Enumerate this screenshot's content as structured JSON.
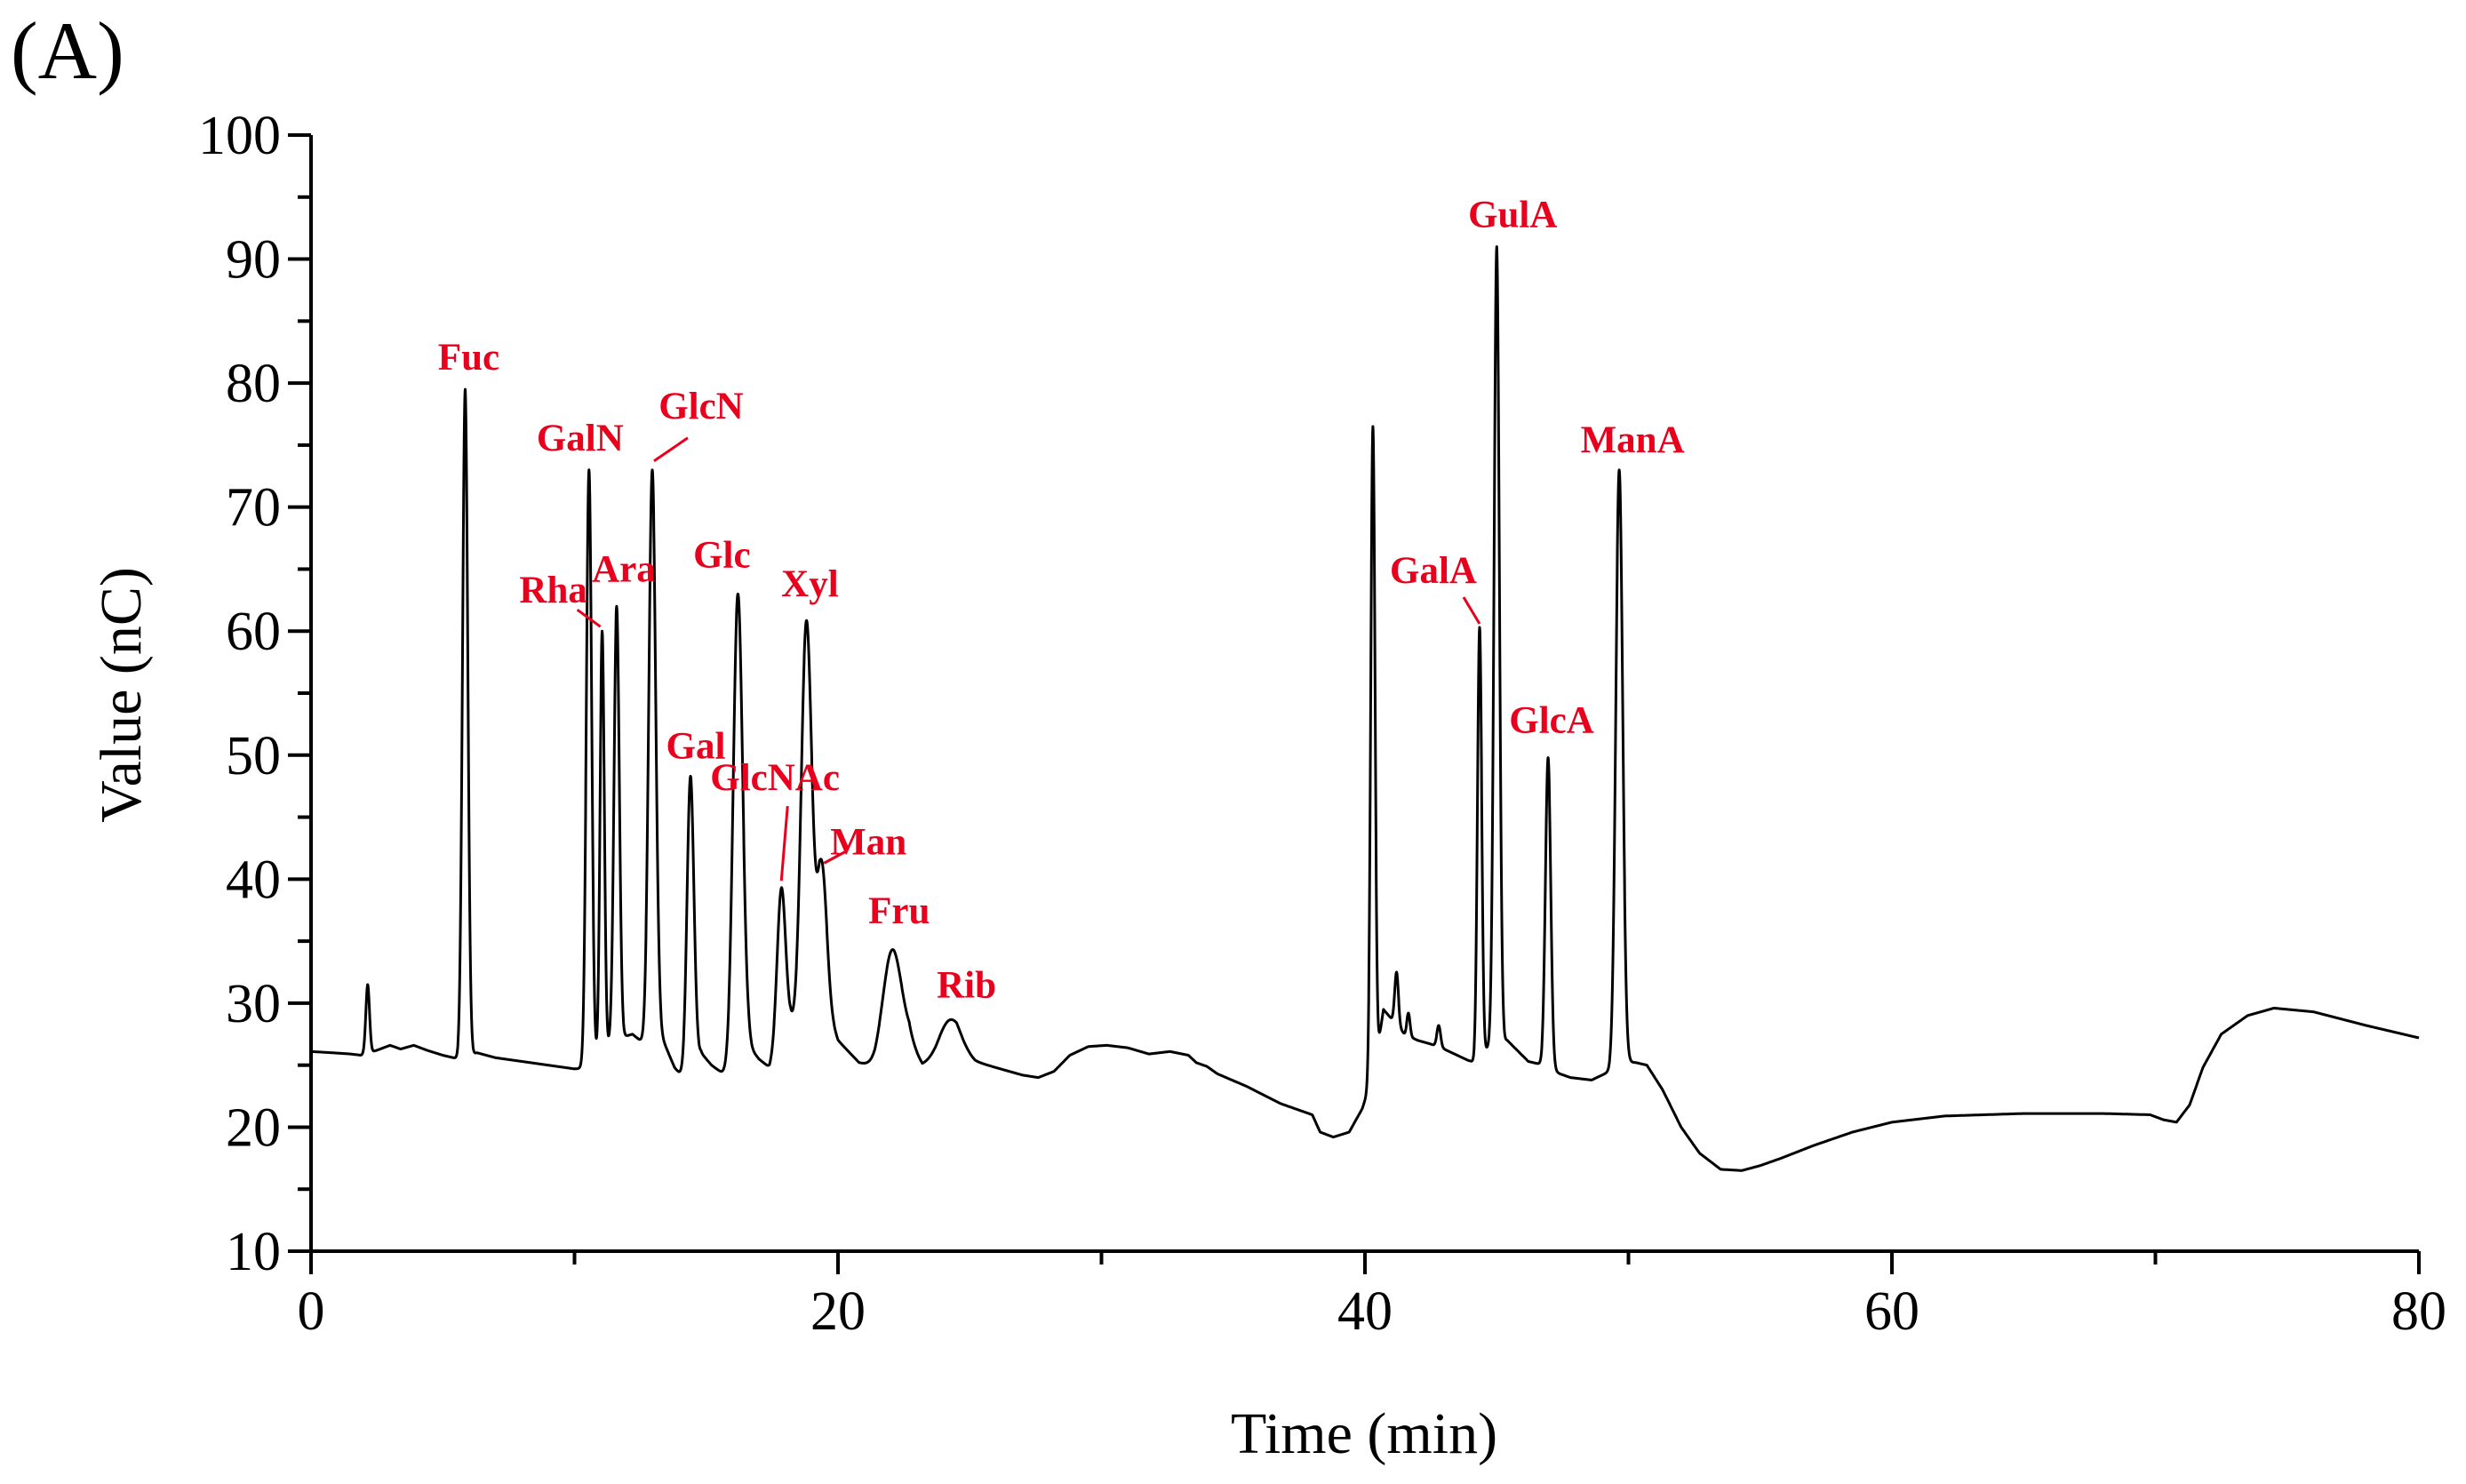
{
  "panel_label": "(A)",
  "chart_data": {
    "type": "line",
    "title": "",
    "xlabel": "Time (min)",
    "ylabel": "Value (nC)",
    "xlim": [
      0,
      80
    ],
    "ylim": [
      10,
      100
    ],
    "xticks": [
      0,
      20,
      40,
      60,
      80
    ],
    "yticks": [
      10,
      20,
      30,
      40,
      50,
      60,
      70,
      80,
      90,
      100
    ],
    "grid": false,
    "line_color": "#000000",
    "label_color": "#e8001c",
    "baseline": [
      [
        0,
        26.1
      ],
      [
        0.8,
        26.0
      ],
      [
        1.5,
        25.9
      ],
      [
        1.9,
        25.8
      ],
      [
        2.5,
        26.2
      ],
      [
        3.0,
        26.6
      ],
      [
        3.4,
        26.3
      ],
      [
        3.9,
        26.6
      ],
      [
        4.4,
        26.2
      ],
      [
        5.0,
        25.8
      ],
      [
        5.6,
        25.5
      ],
      [
        6.3,
        26.0
      ],
      [
        7.0,
        25.6
      ],
      [
        8.0,
        25.3
      ],
      [
        9.0,
        25.0
      ],
      [
        10.0,
        24.7
      ],
      [
        10.6,
        24.8
      ],
      [
        11.4,
        27.0
      ],
      [
        12.2,
        27.5
      ],
      [
        12.6,
        26.8
      ],
      [
        13.2,
        27.8
      ],
      [
        13.8,
        24.8
      ],
      [
        14.2,
        23.8
      ],
      [
        14.8,
        26.0
      ],
      [
        15.2,
        25.0
      ],
      [
        15.9,
        23.9
      ],
      [
        16.6,
        26.5
      ],
      [
        17.0,
        25.5
      ],
      [
        17.4,
        24.8
      ],
      [
        18.2,
        28.2
      ],
      [
        18.5,
        27.5
      ],
      [
        19.3,
        31.0
      ],
      [
        20.0,
        27.0
      ],
      [
        20.8,
        25.2
      ],
      [
        21.4,
        24.8
      ],
      [
        22.7,
        27.0
      ],
      [
        23.2,
        25.0
      ],
      [
        23.7,
        25.3
      ],
      [
        24.5,
        26.5
      ],
      [
        25.2,
        25.3
      ],
      [
        26.0,
        24.8
      ],
      [
        27.0,
        24.2
      ],
      [
        27.6,
        24.0
      ],
      [
        28.2,
        24.5
      ],
      [
        28.8,
        25.8
      ],
      [
        29.5,
        26.5
      ],
      [
        30.2,
        26.6
      ],
      [
        31.0,
        26.4
      ],
      [
        31.8,
        25.9
      ],
      [
        32.6,
        26.1
      ],
      [
        33.3,
        25.8
      ],
      [
        33.6,
        25.2
      ],
      [
        34.0,
        24.9
      ],
      [
        34.4,
        24.3
      ],
      [
        35.5,
        23.3
      ],
      [
        36.8,
        21.9
      ],
      [
        38.0,
        21.0
      ],
      [
        38.3,
        19.6
      ],
      [
        38.8,
        19.2
      ],
      [
        39.4,
        19.6
      ],
      [
        39.9,
        21.5
      ],
      [
        40.2,
        23.5
      ],
      [
        40.5,
        26.5
      ],
      [
        40.7,
        29.5
      ],
      [
        41.1,
        28.5
      ],
      [
        41.5,
        27.5
      ],
      [
        42.0,
        27.0
      ],
      [
        42.5,
        26.7
      ],
      [
        43.0,
        26.3
      ],
      [
        43.5,
        25.8
      ],
      [
        43.9,
        25.4
      ],
      [
        44.2,
        25.2
      ],
      [
        44.7,
        26.5
      ],
      [
        45.4,
        27.0
      ],
      [
        46.2,
        25.3
      ],
      [
        46.8,
        25.0
      ],
      [
        47.4,
        24.3
      ],
      [
        47.8,
        24.0
      ],
      [
        48.6,
        23.8
      ],
      [
        49.3,
        24.5
      ],
      [
        49.8,
        25.3
      ],
      [
        50.3,
        25.2
      ],
      [
        50.7,
        25.0
      ],
      [
        51.3,
        23.0
      ],
      [
        52.0,
        20.0
      ],
      [
        52.7,
        17.9
      ],
      [
        53.5,
        16.6
      ],
      [
        54.3,
        16.5
      ],
      [
        55.0,
        16.9
      ],
      [
        55.8,
        17.5
      ],
      [
        57.0,
        18.5
      ],
      [
        58.5,
        19.6
      ],
      [
        60.0,
        20.4
      ],
      [
        62.0,
        20.9
      ],
      [
        65.0,
        21.1
      ],
      [
        68.0,
        21.1
      ],
      [
        69.8,
        21.0
      ],
      [
        70.3,
        20.6
      ],
      [
        70.8,
        20.4
      ],
      [
        71.3,
        21.8
      ],
      [
        71.8,
        24.8
      ],
      [
        72.5,
        27.5
      ],
      [
        73.5,
        29.0
      ],
      [
        74.5,
        29.6
      ],
      [
        76.0,
        29.3
      ],
      [
        78.0,
        28.2
      ],
      [
        80.0,
        27.2
      ]
    ],
    "peaks": [
      {
        "name": "",
        "t": 2.15,
        "height": 31.5,
        "width": 0.07
      },
      {
        "name": "Fuc",
        "t": 5.85,
        "height": 79.5,
        "width": 0.1
      },
      {
        "name": "GalN",
        "t": 10.55,
        "height": 73.0,
        "width": 0.1
      },
      {
        "name": "Rha",
        "t": 11.05,
        "height": 60.0,
        "width": 0.08
      },
      {
        "name": "Ara",
        "t": 11.6,
        "height": 62.0,
        "width": 0.1
      },
      {
        "name": "GlcN",
        "t": 12.95,
        "height": 73.0,
        "width": 0.13
      },
      {
        "name": "Gal",
        "t": 14.4,
        "height": 48.3,
        "width": 0.13
      },
      {
        "name": "Glc",
        "t": 16.2,
        "height": 63.0,
        "width": 0.18
      },
      {
        "name": "GlcNAc",
        "t": 17.85,
        "height": 39.3,
        "width": 0.16
      },
      {
        "name": "Xyl",
        "t": 18.8,
        "height": 60.8,
        "width": 0.2
      },
      {
        "name": "Man",
        "t": 19.4,
        "height": 41.0,
        "width": 0.18
      },
      {
        "name": "Fru",
        "t": 22.05,
        "height": 34.3,
        "width": 0.35
      },
      {
        "name": "Rib",
        "t": 24.2,
        "height": 28.6,
        "width": 0.4
      },
      {
        "name": "",
        "t": 40.3,
        "height": 76.5,
        "width": 0.08
      },
      {
        "name": "",
        "t": 41.2,
        "height": 32.5,
        "width": 0.07
      },
      {
        "name": "",
        "t": 41.65,
        "height": 29.2,
        "width": 0.06
      },
      {
        "name": "",
        "t": 42.8,
        "height": 28.2,
        "width": 0.07
      },
      {
        "name": "GalA",
        "t": 44.35,
        "height": 60.3,
        "width": 0.08
      },
      {
        "name": "GulA",
        "t": 45.0,
        "height": 91.0,
        "width": 0.1
      },
      {
        "name": "GlcA",
        "t": 46.95,
        "height": 49.8,
        "width": 0.1
      },
      {
        "name": "ManA",
        "t": 49.65,
        "height": 73.0,
        "width": 0.13
      }
    ],
    "annotations": [
      {
        "label": "Fuc",
        "peak_t": 5.85,
        "peak_y": 79.5
      },
      {
        "label": "GalN",
        "peak_t": 10.55,
        "peak_y": 73.0
      },
      {
        "label": "GlcN",
        "peak_t": 12.95,
        "peak_y": 73.0
      },
      {
        "label": "Rha",
        "peak_t": 11.05,
        "peak_y": 60.0
      },
      {
        "label": "Ara",
        "peak_t": 11.6,
        "peak_y": 62.0
      },
      {
        "label": "Glc",
        "peak_t": 16.2,
        "peak_y": 63.0
      },
      {
        "label": "Xyl",
        "peak_t": 18.8,
        "peak_y": 60.8
      },
      {
        "label": "Gal",
        "peak_t": 14.4,
        "peak_y": 48.3
      },
      {
        "label": "GlcNAc",
        "peak_t": 17.85,
        "peak_y": 39.3
      },
      {
        "label": "Man",
        "peak_t": 19.4,
        "peak_y": 41.0
      },
      {
        "label": "Fru",
        "peak_t": 22.05,
        "peak_y": 34.3
      },
      {
        "label": "Rib",
        "peak_t": 24.2,
        "peak_y": 28.6
      },
      {
        "label": "GulA",
        "peak_t": 45.0,
        "peak_y": 91.0
      },
      {
        "label": "GalA",
        "peak_t": 44.35,
        "peak_y": 60.3
      },
      {
        "label": "GlcA",
        "peak_t": 46.95,
        "peak_y": 49.8
      },
      {
        "label": "ManA",
        "peak_t": 49.65,
        "peak_y": 73.0
      }
    ]
  }
}
